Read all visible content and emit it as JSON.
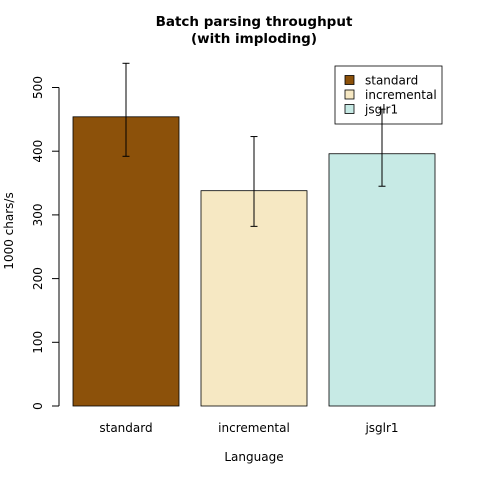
{
  "chart_data": {
    "type": "bar",
    "title_line1": "Batch parsing throughput",
    "title_line2": "(with imploding)",
    "xlabel": "Language",
    "ylabel": "1000 chars/s",
    "categories": [
      "standard",
      "incremental",
      "jsglr1"
    ],
    "values": [
      454,
      338,
      396
    ],
    "error_low": [
      392,
      282,
      345
    ],
    "error_high": [
      538,
      423,
      466
    ],
    "colors": [
      "#8c510a",
      "#f6e8c3",
      "#c7eae5"
    ],
    "ylim": [
      0,
      550
    ],
    "yticks": [
      0,
      100,
      200,
      300,
      400,
      500
    ],
    "legend": {
      "position": "top-right",
      "entries": [
        "standard",
        "incremental",
        "jsglr1"
      ]
    }
  }
}
